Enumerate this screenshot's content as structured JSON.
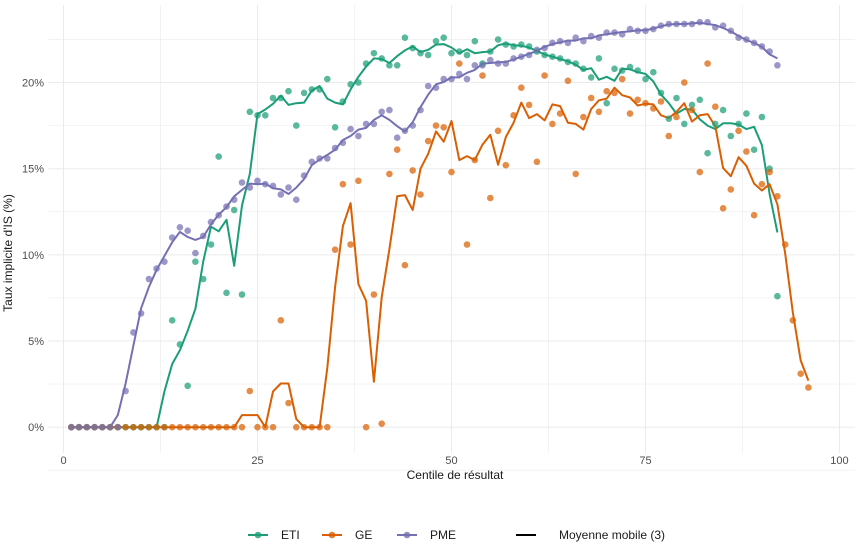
{
  "chart_data": {
    "type": "scatter",
    "xlabel": "Centile de résultat",
    "ylabel": "Taux implicite d'IS (%)",
    "xlim": [
      -2,
      102
    ],
    "ylim": [
      -1.5,
      24.5
    ],
    "x_ticks": [
      0,
      25,
      50,
      75,
      100
    ],
    "x_tick_labels": [
      "0",
      "25",
      "50",
      "75",
      "100"
    ],
    "y_ticks": [
      0,
      5,
      10,
      15,
      20
    ],
    "y_tick_labels": [
      "0%",
      "5%",
      "10%",
      "15%",
      "20%"
    ],
    "grid": true,
    "legend_position": "bottom",
    "moving_average_label": "Moyenne mobile (3)",
    "series": [
      {
        "name": "ETI",
        "color": "#1b9e77",
        "points": [
          [
            1,
            0
          ],
          [
            2,
            0
          ],
          [
            3,
            0
          ],
          [
            4,
            0
          ],
          [
            5,
            0
          ],
          [
            6,
            0
          ],
          [
            7,
            0
          ],
          [
            8,
            0
          ],
          [
            9,
            0
          ],
          [
            10,
            0
          ],
          [
            11,
            0
          ],
          [
            12,
            0
          ],
          [
            13,
            0
          ],
          [
            14,
            6.2
          ],
          [
            15,
            4.8
          ],
          [
            16,
            2.4
          ],
          [
            17,
            9.6
          ],
          [
            18,
            8.6
          ],
          [
            19,
            10.6
          ],
          [
            20,
            15.7
          ],
          [
            21,
            7.8
          ],
          [
            22,
            12.6
          ],
          [
            23,
            7.7
          ],
          [
            24,
            18.3
          ],
          [
            25,
            18.1
          ],
          [
            26,
            18.1
          ],
          [
            27,
            19.1
          ],
          [
            28,
            19.1
          ],
          [
            29,
            19.5
          ],
          [
            30,
            17.5
          ],
          [
            31,
            19.4
          ],
          [
            32,
            19.6
          ],
          [
            33,
            19.6
          ],
          [
            34,
            20.2
          ],
          [
            35,
            17.4
          ],
          [
            36,
            18.9
          ],
          [
            37,
            19.9
          ],
          [
            38,
            20.0
          ],
          [
            39,
            21.1
          ],
          [
            40,
            21.7
          ],
          [
            41,
            21.4
          ],
          [
            42,
            21.0
          ],
          [
            43,
            21.0
          ],
          [
            44,
            22.6
          ],
          [
            45,
            22.0
          ],
          [
            46,
            21.7
          ],
          [
            47,
            21.6
          ],
          [
            48,
            22.4
          ],
          [
            49,
            22.6
          ],
          [
            50,
            21.7
          ],
          [
            51,
            21.8
          ],
          [
            52,
            21.6
          ],
          [
            53,
            22.4
          ],
          [
            54,
            21.1
          ],
          [
            55,
            21.8
          ],
          [
            56,
            22.5
          ],
          [
            57,
            22.2
          ],
          [
            58,
            22.1
          ],
          [
            59,
            22.2
          ],
          [
            60,
            22.1
          ],
          [
            61,
            21.8
          ],
          [
            62,
            21.6
          ],
          [
            63,
            21.5
          ],
          [
            64,
            21.4
          ],
          [
            65,
            21.2
          ],
          [
            66,
            21.1
          ],
          [
            67,
            20.8
          ],
          [
            68,
            20.3
          ],
          [
            69,
            21.4
          ],
          [
            70,
            18.8
          ],
          [
            71,
            20.8
          ],
          [
            72,
            20.7
          ],
          [
            73,
            20.9
          ],
          [
            74,
            20.7
          ],
          [
            75,
            20.2
          ],
          [
            76,
            20.6
          ],
          [
            77,
            19.4
          ],
          [
            78,
            17.9
          ],
          [
            79,
            19.1
          ],
          [
            80,
            17.6
          ],
          [
            81,
            18.7
          ],
          [
            82,
            19.0
          ],
          [
            83,
            15.9
          ],
          [
            84,
            17.6
          ],
          [
            85,
            18.4
          ],
          [
            86,
            16.9
          ],
          [
            87,
            17.6
          ],
          [
            88,
            18.2
          ],
          [
            89,
            16.1
          ],
          [
            90,
            18.0
          ],
          [
            91,
            15.0
          ],
          [
            92,
            7.6
          ]
        ]
      },
      {
        "name": "GE",
        "color": "#d95f02",
        "points": [
          [
            1,
            0
          ],
          [
            2,
            0
          ],
          [
            3,
            0
          ],
          [
            4,
            0
          ],
          [
            5,
            0
          ],
          [
            6,
            0
          ],
          [
            7,
            0
          ],
          [
            8,
            0
          ],
          [
            9,
            0
          ],
          [
            10,
            0
          ],
          [
            11,
            0
          ],
          [
            12,
            0
          ],
          [
            13,
            0
          ],
          [
            14,
            0
          ],
          [
            15,
            0
          ],
          [
            16,
            0
          ],
          [
            17,
            0
          ],
          [
            18,
            0
          ],
          [
            19,
            0
          ],
          [
            20,
            0
          ],
          [
            21,
            0
          ],
          [
            22,
            0
          ],
          [
            23,
            0
          ],
          [
            24,
            2.1
          ],
          [
            25,
            0
          ],
          [
            26,
            0
          ],
          [
            27,
            0
          ],
          [
            28,
            6.2
          ],
          [
            29,
            1.4
          ],
          [
            30,
            0
          ],
          [
            31,
            0
          ],
          [
            32,
            0
          ],
          [
            33,
            0
          ],
          [
            34,
            0
          ],
          [
            35,
            10.3
          ],
          [
            36,
            14.1
          ],
          [
            37,
            10.6
          ],
          [
            38,
            14.3
          ],
          [
            39,
            0
          ],
          [
            40,
            7.7
          ],
          [
            41,
            0.2
          ],
          [
            42,
            14.7
          ],
          [
            43,
            16.1
          ],
          [
            44,
            9.4
          ],
          [
            45,
            14.9
          ],
          [
            46,
            13.5
          ],
          [
            47,
            16.6
          ],
          [
            48,
            17.5
          ],
          [
            49,
            17.4
          ],
          [
            50,
            14.8
          ],
          [
            51,
            21.1
          ],
          [
            52,
            10.6
          ],
          [
            53,
            15.5
          ],
          [
            54,
            20.4
          ],
          [
            55,
            13.3
          ],
          [
            56,
            17.2
          ],
          [
            57,
            15.2
          ],
          [
            58,
            18.1
          ],
          [
            59,
            19.7
          ],
          [
            60,
            18.7
          ],
          [
            61,
            15.4
          ],
          [
            62,
            20.4
          ],
          [
            63,
            17.6
          ],
          [
            64,
            18.2
          ],
          [
            65,
            20.1
          ],
          [
            66,
            14.7
          ],
          [
            67,
            18.0
          ],
          [
            68,
            19.1
          ],
          [
            69,
            18.3
          ],
          [
            70,
            19.5
          ],
          [
            71,
            19.4
          ],
          [
            72,
            20.2
          ],
          [
            73,
            18.2
          ],
          [
            74,
            19.0
          ],
          [
            75,
            18.8
          ],
          [
            76,
            18.5
          ],
          [
            77,
            18.9
          ],
          [
            78,
            16.9
          ],
          [
            79,
            18.0
          ],
          [
            80,
            20.0
          ],
          [
            81,
            18.4
          ],
          [
            82,
            14.8
          ],
          [
            83,
            21.1
          ],
          [
            84,
            18.6
          ],
          [
            85,
            12.7
          ],
          [
            86,
            13.8
          ],
          [
            87,
            17.2
          ],
          [
            88,
            16.0
          ],
          [
            89,
            12.3
          ],
          [
            90,
            14.1
          ],
          [
            91,
            14.8
          ],
          [
            92,
            13.4
          ],
          [
            93,
            10.6
          ],
          [
            94,
            6.2
          ],
          [
            95,
            3.1
          ],
          [
            96,
            2.3
          ]
        ]
      },
      {
        "name": "PME",
        "color": "#7570b3",
        "points": [
          [
            1,
            0
          ],
          [
            2,
            0
          ],
          [
            3,
            0
          ],
          [
            4,
            0
          ],
          [
            5,
            0
          ],
          [
            6,
            0
          ],
          [
            7,
            0
          ],
          [
            8,
            2.1
          ],
          [
            9,
            5.5
          ],
          [
            10,
            6.6
          ],
          [
            11,
            8.6
          ],
          [
            12,
            9.2
          ],
          [
            13,
            9.6
          ],
          [
            14,
            11.0
          ],
          [
            15,
            11.6
          ],
          [
            16,
            11.4
          ],
          [
            17,
            10.1
          ],
          [
            18,
            11.1
          ],
          [
            19,
            11.9
          ],
          [
            20,
            12.3
          ],
          [
            21,
            12.8
          ],
          [
            22,
            13.2
          ],
          [
            23,
            14.2
          ],
          [
            24,
            13.9
          ],
          [
            25,
            14.3
          ],
          [
            26,
            14.1
          ],
          [
            27,
            14.0
          ],
          [
            28,
            13.5
          ],
          [
            29,
            13.9
          ],
          [
            30,
            13.2
          ],
          [
            31,
            14.6
          ],
          [
            32,
            15.4
          ],
          [
            33,
            15.6
          ],
          [
            34,
            15.6
          ],
          [
            35,
            16.2
          ],
          [
            36,
            16.5
          ],
          [
            37,
            17.3
          ],
          [
            38,
            16.9
          ],
          [
            39,
            17.6
          ],
          [
            40,
            17.6
          ],
          [
            41,
            18.3
          ],
          [
            42,
            18.4
          ],
          [
            43,
            16.8
          ],
          [
            44,
            17.2
          ],
          [
            45,
            17.5
          ],
          [
            46,
            18.4
          ],
          [
            47,
            19.8
          ],
          [
            48,
            19.7
          ],
          [
            49,
            20.2
          ],
          [
            50,
            20.2
          ],
          [
            51,
            20.5
          ],
          [
            52,
            20.2
          ],
          [
            53,
            21.0
          ],
          [
            54,
            21.0
          ],
          [
            55,
            21.3
          ],
          [
            56,
            21.1
          ],
          [
            57,
            21.1
          ],
          [
            58,
            21.4
          ],
          [
            59,
            21.5
          ],
          [
            60,
            21.6
          ],
          [
            61,
            21.9
          ],
          [
            62,
            22.0
          ],
          [
            63,
            22.3
          ],
          [
            64,
            22.4
          ],
          [
            65,
            22.3
          ],
          [
            66,
            22.6
          ],
          [
            67,
            22.4
          ],
          [
            68,
            22.7
          ],
          [
            69,
            22.6
          ],
          [
            70,
            22.9
          ],
          [
            71,
            22.9
          ],
          [
            72,
            22.8
          ],
          [
            73,
            23.1
          ],
          [
            74,
            23.0
          ],
          [
            75,
            23.0
          ],
          [
            76,
            23.1
          ],
          [
            77,
            23.3
          ],
          [
            78,
            23.4
          ],
          [
            79,
            23.4
          ],
          [
            80,
            23.4
          ],
          [
            81,
            23.4
          ],
          [
            82,
            23.5
          ],
          [
            83,
            23.5
          ],
          [
            84,
            23.2
          ],
          [
            85,
            23.3
          ],
          [
            86,
            23.0
          ],
          [
            87,
            22.6
          ],
          [
            88,
            22.5
          ],
          [
            89,
            22.3
          ],
          [
            90,
            22.1
          ],
          [
            91,
            21.8
          ],
          [
            92,
            21.0
          ]
        ]
      }
    ]
  }
}
